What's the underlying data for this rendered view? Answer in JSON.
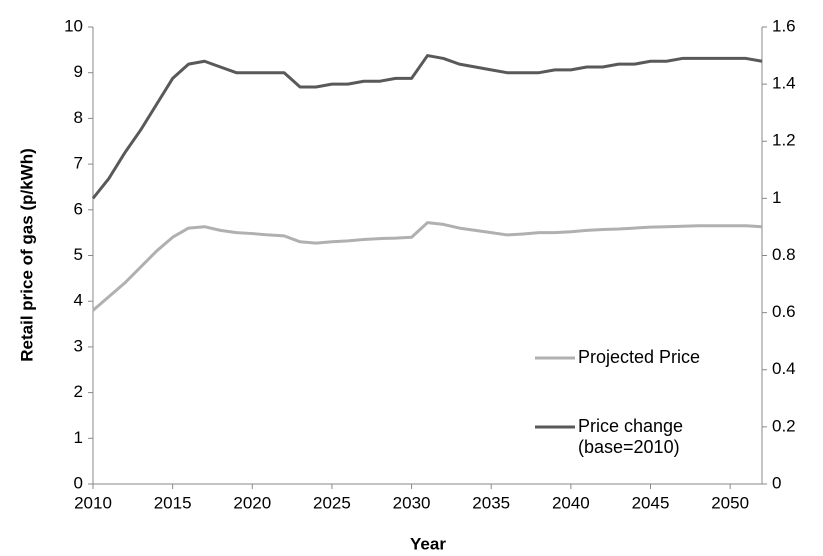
{
  "chart_data": {
    "type": "line",
    "y_label": "Retail price of gas (p/kWh)",
    "x_label": "Year",
    "x": [
      2010,
      2011,
      2012,
      2013,
      2014,
      2015,
      2016,
      2017,
      2018,
      2019,
      2020,
      2021,
      2022,
      2023,
      2024,
      2025,
      2026,
      2027,
      2028,
      2029,
      2030,
      2031,
      2032,
      2033,
      2034,
      2035,
      2036,
      2037,
      2038,
      2039,
      2040,
      2041,
      2042,
      2043,
      2044,
      2045,
      2046,
      2047,
      2048,
      2049,
      2050,
      2051,
      2052
    ],
    "series": [
      {
        "name": "Projected Price",
        "color": "#b0b0b0",
        "axis": "y",
        "values": [
          3.8,
          4.1,
          4.4,
          4.75,
          5.1,
          5.4,
          5.6,
          5.63,
          5.55,
          5.5,
          5.48,
          5.45,
          5.43,
          5.3,
          5.27,
          5.3,
          5.32,
          5.35,
          5.37,
          5.38,
          5.4,
          5.72,
          5.68,
          5.6,
          5.55,
          5.5,
          5.45,
          5.47,
          5.5,
          5.5,
          5.52,
          5.55,
          5.57,
          5.58,
          5.6,
          5.62,
          5.63,
          5.64,
          5.65,
          5.65,
          5.65,
          5.65,
          5.63
        ]
      },
      {
        "name": "Price change (base=2010)",
        "color": "#595959",
        "axis": "y2",
        "values": [
          1.0,
          1.07,
          1.16,
          1.24,
          1.33,
          1.42,
          1.47,
          1.48,
          1.46,
          1.44,
          1.44,
          1.44,
          1.44,
          1.39,
          1.39,
          1.4,
          1.4,
          1.41,
          1.41,
          1.42,
          1.42,
          1.5,
          1.49,
          1.47,
          1.46,
          1.45,
          1.44,
          1.44,
          1.44,
          1.45,
          1.45,
          1.46,
          1.46,
          1.47,
          1.47,
          1.48,
          1.48,
          1.49,
          1.49,
          1.49,
          1.49,
          1.49,
          1.48
        ]
      }
    ],
    "xlim": [
      2010,
      2052
    ],
    "xticks": [
      2010,
      2015,
      2020,
      2025,
      2030,
      2035,
      2040,
      2045,
      2050
    ],
    "ylim": [
      0,
      10
    ],
    "yticks": [
      0,
      1,
      2,
      3,
      4,
      5,
      6,
      7,
      8,
      9,
      10
    ],
    "y2lim": [
      0,
      1.6
    ],
    "y2ticks": [
      0,
      0.2,
      0.4,
      0.6,
      0.8,
      1,
      1.2,
      1.4,
      1.6
    ],
    "grid": false,
    "legend": "lower right"
  }
}
